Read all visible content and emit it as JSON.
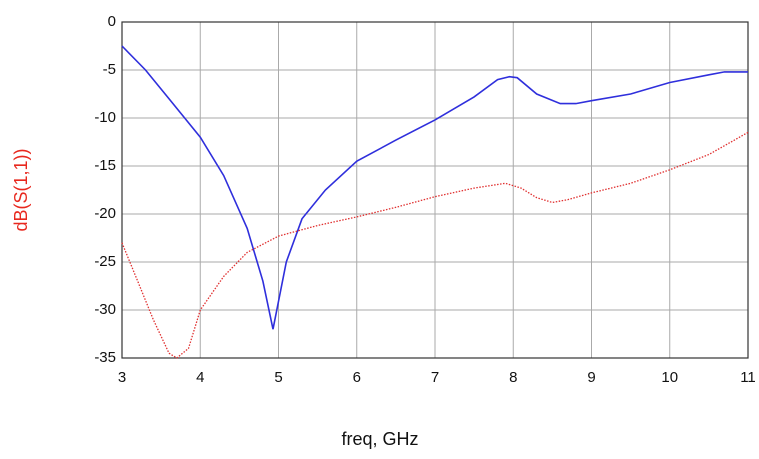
{
  "chart_data": {
    "type": "line",
    "xlabel": "freq, GHz",
    "ylabel": "dB(S(1,1))",
    "ylabel_color": "#e8281e",
    "xlim": [
      3,
      11
    ],
    "xticks": [
      3,
      4,
      5,
      6,
      7,
      8,
      9,
      10,
      11
    ],
    "ylim": [
      -35,
      0
    ],
    "yticks": [
      0,
      -5,
      -10,
      -15,
      -20,
      -25,
      -30,
      -35
    ],
    "grid": true,
    "series": [
      {
        "color": "#2f2fdc",
        "style": "solid",
        "x": [
          3,
          3.3,
          3.6,
          4.0,
          4.3,
          4.6,
          4.8,
          4.93,
          5.1,
          5.3,
          5.6,
          6.0,
          6.5,
          7.0,
          7.5,
          7.8,
          7.95,
          8.05,
          8.3,
          8.6,
          8.8,
          9.0,
          9.5,
          10.0,
          10.5,
          10.7,
          11
        ],
        "values": [
          -2.5,
          -5,
          -8,
          -12,
          -16,
          -21.5,
          -27,
          -32,
          -25,
          -20.5,
          -17.5,
          -14.5,
          -12.3,
          -10.2,
          -7.8,
          -6,
          -5.7,
          -5.8,
          -7.5,
          -8.5,
          -8.5,
          -8.2,
          -7.5,
          -6.3,
          -5.5,
          -5.2,
          -5.2
        ]
      },
      {
        "color": "#e03030",
        "style": "dotted",
        "x": [
          3,
          3.2,
          3.4,
          3.6,
          3.7,
          3.85,
          4.0,
          4.3,
          4.6,
          5.0,
          5.5,
          6.0,
          6.5,
          7.0,
          7.5,
          7.9,
          8.1,
          8.3,
          8.5,
          8.7,
          9.0,
          9.5,
          10.0,
          10.5,
          11
        ],
        "values": [
          -23,
          -27,
          -31,
          -34.5,
          -35,
          -34,
          -30,
          -26.5,
          -24,
          -22.3,
          -21.2,
          -20.3,
          -19.3,
          -18.2,
          -17.3,
          -16.8,
          -17.3,
          -18.3,
          -18.8,
          -18.5,
          -17.8,
          -16.8,
          -15.4,
          -13.8,
          -11.5
        ]
      }
    ]
  }
}
